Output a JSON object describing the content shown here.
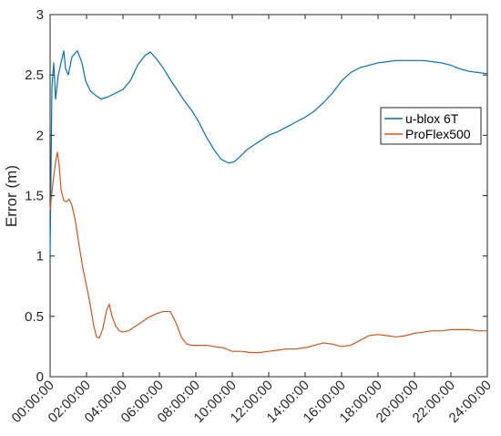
{
  "chart_data": {
    "type": "line",
    "title": "",
    "xlabel": "",
    "ylabel": "Error (m)",
    "xlim": [
      0,
      24
    ],
    "ylim": [
      0,
      3
    ],
    "x_ticks": [
      0,
      2,
      4,
      6,
      8,
      10,
      12,
      14,
      16,
      18,
      20,
      22,
      24
    ],
    "x_tick_labels": [
      "00:00:00",
      "02:00:00",
      "04:00:00",
      "06:00:00",
      "08:00:00",
      "10:00:00",
      "12:00:00",
      "14:00:00",
      "16:00:00",
      "18:00:00",
      "20:00:00",
      "22:00:00",
      "24:00:00"
    ],
    "y_ticks": [
      0,
      0.5,
      1,
      1.5,
      2,
      2.5,
      3
    ],
    "y_tick_labels": [
      "0",
      "0.5",
      "1",
      "1.5",
      "2",
      "2.5",
      "3"
    ],
    "grid": false,
    "legend_position": "right",
    "series": [
      {
        "name": "u-blox 6T",
        "color": "#0072BD",
        "points": [
          [
            0,
            1.0
          ],
          [
            0.1,
            2.4
          ],
          [
            0.2,
            2.6
          ],
          [
            0.3,
            2.3
          ],
          [
            0.45,
            2.5
          ],
          [
            0.6,
            2.6
          ],
          [
            0.75,
            2.7
          ],
          [
            0.85,
            2.55
          ],
          [
            1.0,
            2.5
          ],
          [
            1.2,
            2.65
          ],
          [
            1.5,
            2.7
          ],
          [
            1.75,
            2.6
          ],
          [
            1.95,
            2.45
          ],
          [
            2.2,
            2.37
          ],
          [
            2.5,
            2.33
          ],
          [
            2.8,
            2.3
          ],
          [
            3.2,
            2.32
          ],
          [
            3.6,
            2.35
          ],
          [
            4.0,
            2.38
          ],
          [
            4.4,
            2.45
          ],
          [
            4.8,
            2.58
          ],
          [
            5.2,
            2.66
          ],
          [
            5.5,
            2.69
          ],
          [
            5.8,
            2.64
          ],
          [
            6.2,
            2.56
          ],
          [
            6.6,
            2.46
          ],
          [
            7.0,
            2.37
          ],
          [
            7.4,
            2.28
          ],
          [
            7.8,
            2.2
          ],
          [
            8.2,
            2.1
          ],
          [
            8.6,
            1.98
          ],
          [
            9.0,
            1.88
          ],
          [
            9.4,
            1.8
          ],
          [
            9.8,
            1.77
          ],
          [
            10.1,
            1.78
          ],
          [
            10.4,
            1.82
          ],
          [
            10.8,
            1.88
          ],
          [
            11.2,
            1.92
          ],
          [
            11.6,
            1.96
          ],
          [
            12.0,
            2.0
          ],
          [
            12.5,
            2.03
          ],
          [
            13.0,
            2.07
          ],
          [
            13.5,
            2.11
          ],
          [
            14.0,
            2.15
          ],
          [
            14.5,
            2.2
          ],
          [
            15.0,
            2.27
          ],
          [
            15.5,
            2.35
          ],
          [
            16.0,
            2.45
          ],
          [
            16.5,
            2.52
          ],
          [
            17.0,
            2.56
          ],
          [
            17.5,
            2.58
          ],
          [
            18.0,
            2.6
          ],
          [
            18.5,
            2.61
          ],
          [
            19.0,
            2.62
          ],
          [
            19.5,
            2.62
          ],
          [
            20.0,
            2.62
          ],
          [
            20.5,
            2.62
          ],
          [
            21.0,
            2.61
          ],
          [
            21.5,
            2.6
          ],
          [
            22.0,
            2.58
          ],
          [
            22.5,
            2.55
          ],
          [
            23.0,
            2.53
          ],
          [
            23.5,
            2.52
          ],
          [
            24.0,
            2.51
          ]
        ]
      },
      {
        "name": "ProFlex500",
        "color": "#D95319",
        "points": [
          [
            0,
            1.38
          ],
          [
            0.15,
            1.6
          ],
          [
            0.3,
            1.78
          ],
          [
            0.4,
            1.86
          ],
          [
            0.5,
            1.75
          ],
          [
            0.6,
            1.55
          ],
          [
            0.75,
            1.46
          ],
          [
            0.9,
            1.45
          ],
          [
            1.05,
            1.47
          ],
          [
            1.2,
            1.42
          ],
          [
            1.4,
            1.28
          ],
          [
            1.6,
            1.08
          ],
          [
            1.8,
            0.9
          ],
          [
            2.0,
            0.75
          ],
          [
            2.2,
            0.6
          ],
          [
            2.4,
            0.42
          ],
          [
            2.55,
            0.33
          ],
          [
            2.7,
            0.32
          ],
          [
            2.9,
            0.4
          ],
          [
            3.1,
            0.55
          ],
          [
            3.25,
            0.6
          ],
          [
            3.4,
            0.5
          ],
          [
            3.6,
            0.42
          ],
          [
            3.8,
            0.38
          ],
          [
            4.0,
            0.37
          ],
          [
            4.3,
            0.38
          ],
          [
            4.6,
            0.41
          ],
          [
            5.0,
            0.45
          ],
          [
            5.4,
            0.49
          ],
          [
            5.8,
            0.52
          ],
          [
            6.2,
            0.54
          ],
          [
            6.6,
            0.54
          ],
          [
            6.9,
            0.45
          ],
          [
            7.2,
            0.33
          ],
          [
            7.5,
            0.27
          ],
          [
            7.8,
            0.26
          ],
          [
            8.2,
            0.26
          ],
          [
            8.6,
            0.26
          ],
          [
            9.0,
            0.25
          ],
          [
            9.5,
            0.24
          ],
          [
            10.0,
            0.21
          ],
          [
            10.5,
            0.21
          ],
          [
            11.0,
            0.2
          ],
          [
            11.5,
            0.2
          ],
          [
            12.0,
            0.21
          ],
          [
            12.5,
            0.22
          ],
          [
            13.0,
            0.23
          ],
          [
            13.5,
            0.23
          ],
          [
            14.0,
            0.24
          ],
          [
            14.5,
            0.26
          ],
          [
            15.0,
            0.28
          ],
          [
            15.5,
            0.27
          ],
          [
            16.0,
            0.25
          ],
          [
            16.5,
            0.26
          ],
          [
            17.0,
            0.3
          ],
          [
            17.5,
            0.34
          ],
          [
            18.0,
            0.35
          ],
          [
            18.5,
            0.34
          ],
          [
            19.0,
            0.33
          ],
          [
            19.5,
            0.34
          ],
          [
            20.0,
            0.36
          ],
          [
            20.5,
            0.37
          ],
          [
            21.0,
            0.38
          ],
          [
            21.5,
            0.38
          ],
          [
            22.0,
            0.39
          ],
          [
            22.5,
            0.39
          ],
          [
            23.0,
            0.39
          ],
          [
            23.5,
            0.38
          ],
          [
            24.0,
            0.38
          ]
        ]
      }
    ]
  }
}
